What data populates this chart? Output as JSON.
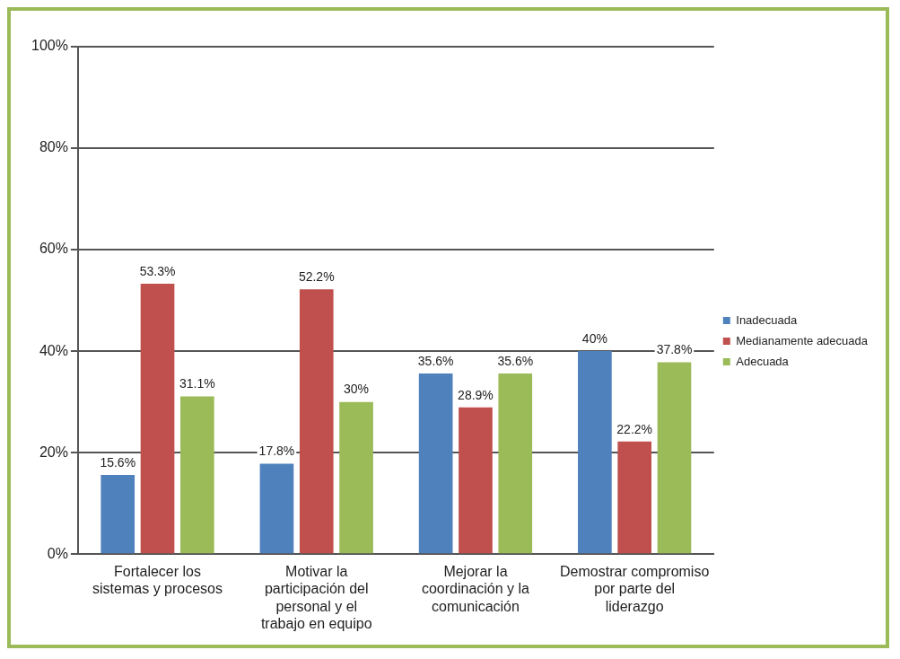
{
  "chart_data": {
    "type": "bar",
    "categories": [
      "Fortalecer los sistemas y procesos",
      "Motivar la participación del personal y el trabajo en equipo",
      "Mejorar la coordinación y la comunicación",
      "Demostrar compromiso por parte del liderazgo"
    ],
    "series": [
      {
        "name": "Inadecuada",
        "color": "#4f81bd",
        "values": [
          15.6,
          17.8,
          35.6,
          40
        ],
        "value_labels": [
          "15.6%",
          "17.8%",
          "35.6%",
          "40%"
        ]
      },
      {
        "name": "Medianamente adecuada",
        "color": "#c0504d",
        "values": [
          53.3,
          52.2,
          28.9,
          22.2
        ],
        "value_labels": [
          "53.3%",
          "52.2%",
          "28.9%",
          "22.2%"
        ]
      },
      {
        "name": "Adecuada",
        "color": "#9bbb59",
        "values": [
          31.1,
          30,
          35.6,
          37.8
        ],
        "value_labels": [
          "31.1%",
          "30%",
          "35.6%",
          "37.8%"
        ]
      }
    ],
    "ylim": [
      0,
      100
    ],
    "yticks": [
      {
        "value": 0,
        "label": "0%"
      },
      {
        "value": 20,
        "label": "20%"
      },
      {
        "value": 40,
        "label": "40%"
      },
      {
        "value": 60,
        "label": "60%"
      },
      {
        "value": 80,
        "label": "80%"
      },
      {
        "value": 100,
        "label": "100%"
      }
    ],
    "grid": "y",
    "legend": "right"
  }
}
